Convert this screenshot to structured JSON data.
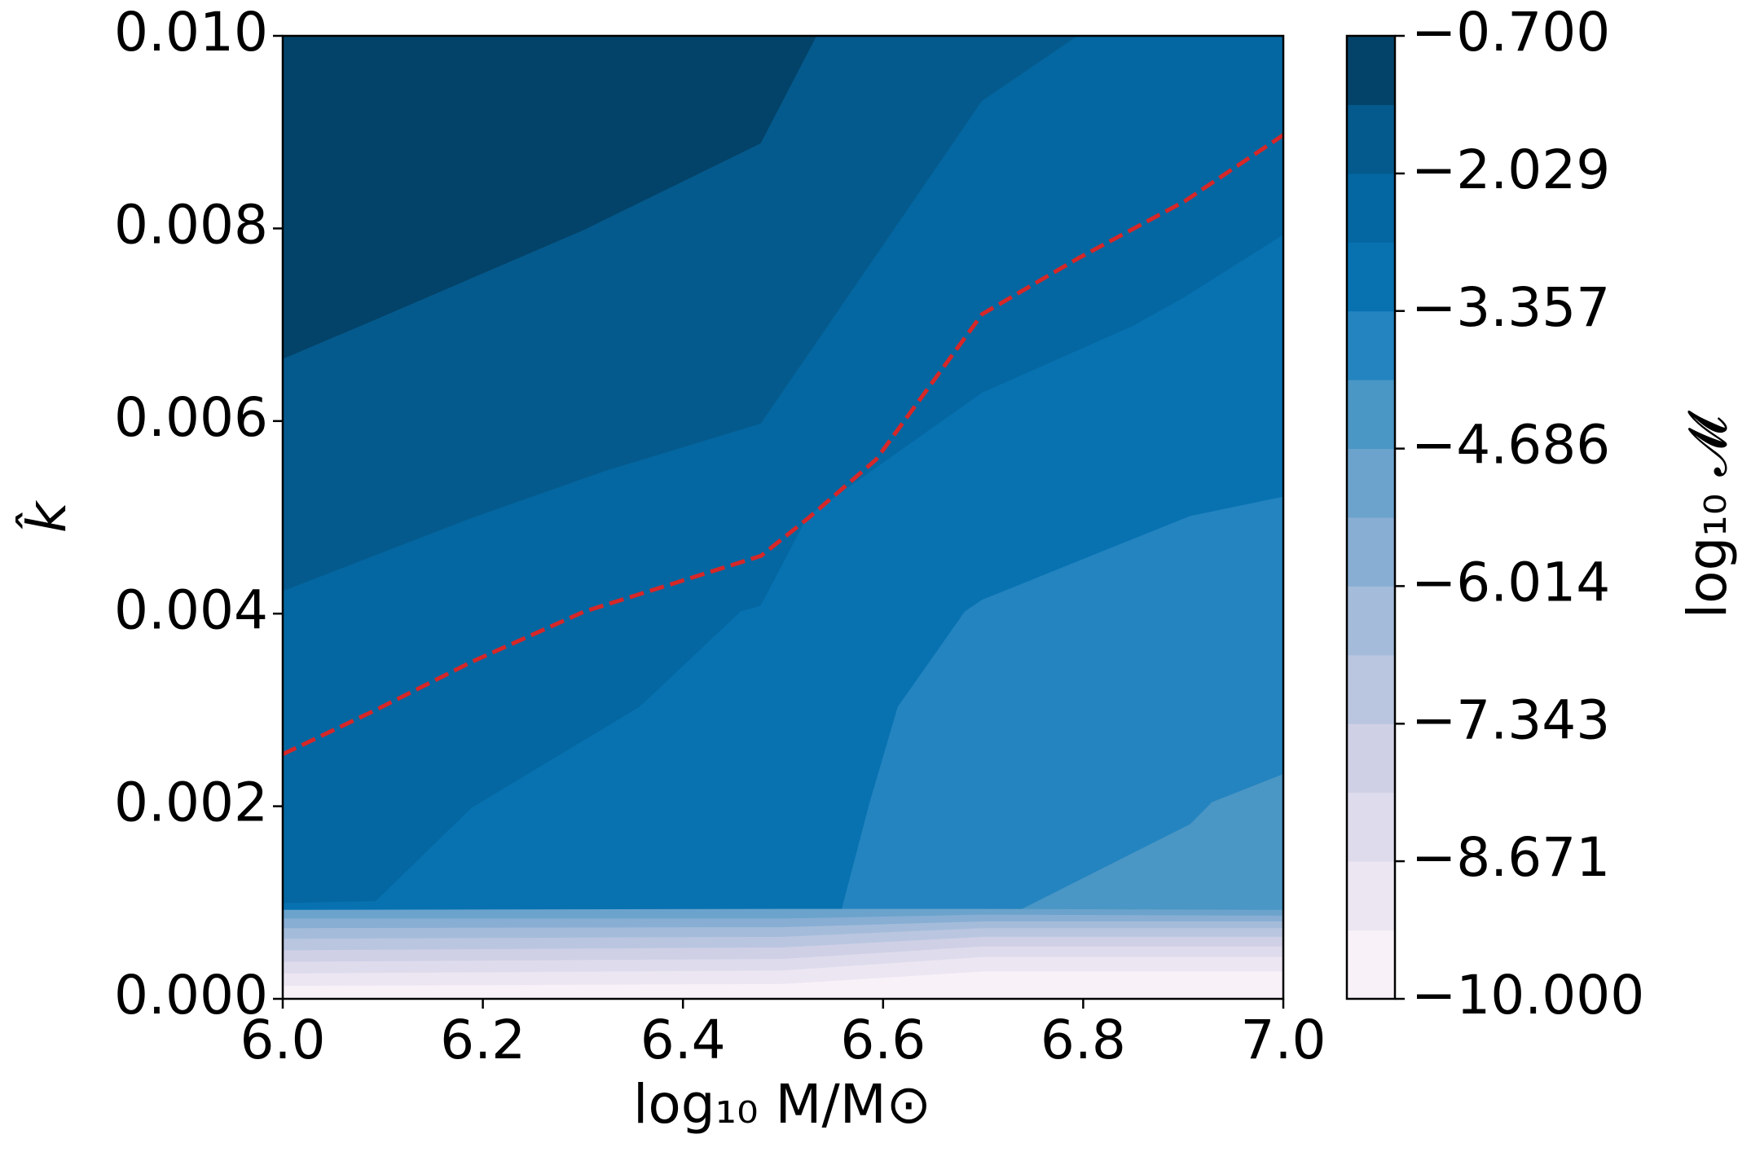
{
  "chart_data": {
    "type": "contour",
    "x_label": "log₁₀ M/M⊙",
    "y_label": "k̂",
    "colorbar_label": "log₁₀ 𝓜",
    "xlim": [
      6.0,
      7.0
    ],
    "ylim": [
      0.0,
      0.01
    ],
    "xticks": [
      {
        "value": 6.0,
        "label": "6.0"
      },
      {
        "value": 6.2,
        "label": "6.2"
      },
      {
        "value": 6.4,
        "label": "6.4"
      },
      {
        "value": 6.6,
        "label": "6.6"
      },
      {
        "value": 6.8,
        "label": "6.8"
      },
      {
        "value": 7.0,
        "label": "7.0"
      }
    ],
    "yticks": [
      {
        "value": 0.0,
        "label": "0.000"
      },
      {
        "value": 0.002,
        "label": "0.002"
      },
      {
        "value": 0.004,
        "label": "0.004"
      },
      {
        "value": 0.006,
        "label": "0.006"
      },
      {
        "value": 0.008,
        "label": "0.008"
      },
      {
        "value": 0.01,
        "label": "0.010"
      }
    ],
    "levels": [
      -10.0,
      -9.336,
      -8.671,
      -8.007,
      -7.343,
      -6.679,
      -6.014,
      -5.35,
      -4.686,
      -4.021,
      -3.357,
      -2.693,
      -2.029,
      -1.364,
      -0.7
    ],
    "colors": [
      "#f8f1f8",
      "#ece6f2",
      "#dedcec",
      "#cfd0e6",
      "#bac6e0",
      "#a4bcda",
      "#88aed3",
      "#6ba3cc",
      "#4a96c5",
      "#2484bf",
      "#0872b1",
      "#0567a1",
      "#055a8d",
      "#034369"
    ],
    "colorbar_ticks": [
      {
        "value": -10.0,
        "label": "−10.000"
      },
      {
        "value": -8.671,
        "label": "−8.671"
      },
      {
        "value": -7.343,
        "label": "−7.343"
      },
      {
        "value": -6.014,
        "label": "−6.014"
      },
      {
        "value": -4.686,
        "label": "−4.686"
      },
      {
        "value": -3.357,
        "label": "−3.357"
      },
      {
        "value": -2.029,
        "label": "−2.029"
      },
      {
        "value": -0.7,
        "label": "−0.700"
      }
    ],
    "contours": [
      {
        "level": -1.364,
        "x": [
          6.0,
          6.093,
          6.301,
          6.478,
          6.534
        ],
        "y": [
          0.00664,
          0.00705,
          0.00798,
          0.00888,
          0.01
        ]
      },
      {
        "level": -2.029,
        "x": [
          6.0,
          6.189,
          6.323,
          6.478,
          6.699,
          6.795
        ],
        "y": [
          0.00423,
          0.00499,
          0.00548,
          0.00597,
          0.00932,
          0.01
        ]
      },
      {
        "level": -2.693,
        "x": [
          6.0,
          6.093,
          6.189,
          6.357,
          6.458,
          6.478,
          6.525,
          6.699,
          6.851,
          6.901,
          7.0
        ],
        "y": [
          0.00099,
          0.00101,
          0.00198,
          0.00303,
          0.00402,
          0.00408,
          0.00501,
          0.00629,
          0.00699,
          0.00728,
          0.00793
        ]
      },
      {
        "level": -3.357,
        "x": [
          6.559,
          6.587,
          6.615,
          6.682,
          6.699,
          6.907,
          7.0
        ],
        "y": [
          0.00093,
          0.00204,
          0.00303,
          0.00402,
          0.00414,
          0.00501,
          0.00521
        ]
      },
      {
        "level": -4.021,
        "x": [
          6.739,
          6.907,
          6.929,
          7.0
        ],
        "y": [
          0.00093,
          0.00181,
          0.00204,
          0.00233
        ]
      },
      {
        "level": -4.686,
        "x": [
          6.0,
          6.5,
          6.7,
          7.0
        ],
        "y": [
          0.00092,
          0.00093,
          0.00093,
          0.00092
        ]
      },
      {
        "level": -5.35,
        "x": [
          6.0,
          6.5,
          6.7,
          7.0
        ],
        "y": [
          0.00083,
          0.00083,
          0.00087,
          0.00086
        ]
      },
      {
        "level": -6.014,
        "x": [
          6.0,
          6.5,
          6.7,
          7.0
        ],
        "y": [
          0.00073,
          0.00074,
          0.0008,
          0.0008
        ]
      },
      {
        "level": -6.679,
        "x": [
          6.0,
          6.5,
          6.7,
          7.0
        ],
        "y": [
          0.00062,
          0.00064,
          0.00073,
          0.00073
        ]
      },
      {
        "level": -7.343,
        "x": [
          6.0,
          6.5,
          6.7,
          7.0
        ],
        "y": [
          0.0005,
          0.00053,
          0.00064,
          0.00064
        ]
      },
      {
        "level": -8.007,
        "x": [
          6.0,
          6.5,
          6.7,
          7.0
        ],
        "y": [
          0.00038,
          0.00041,
          0.00054,
          0.00054
        ]
      },
      {
        "level": -8.671,
        "x": [
          6.0,
          6.5,
          6.7,
          7.0
        ],
        "y": [
          0.00026,
          0.00029,
          0.00043,
          0.00043
        ]
      },
      {
        "level": -9.336,
        "x": [
          6.0,
          6.5,
          6.7,
          7.0
        ],
        "y": [
          0.00013,
          0.00015,
          0.00028,
          0.00028
        ]
      }
    ],
    "line": {
      "color": "#d62728",
      "line_style": "dashed",
      "x": [
        6.0,
        6.093,
        6.189,
        6.301,
        6.478,
        6.525,
        6.593,
        6.699,
        6.795,
        6.901,
        7.0
      ],
      "y": [
        0.00254,
        0.003,
        0.0035,
        0.00402,
        0.0046,
        0.00499,
        0.0056,
        0.00711,
        0.00769,
        0.00828,
        0.00897
      ]
    }
  }
}
